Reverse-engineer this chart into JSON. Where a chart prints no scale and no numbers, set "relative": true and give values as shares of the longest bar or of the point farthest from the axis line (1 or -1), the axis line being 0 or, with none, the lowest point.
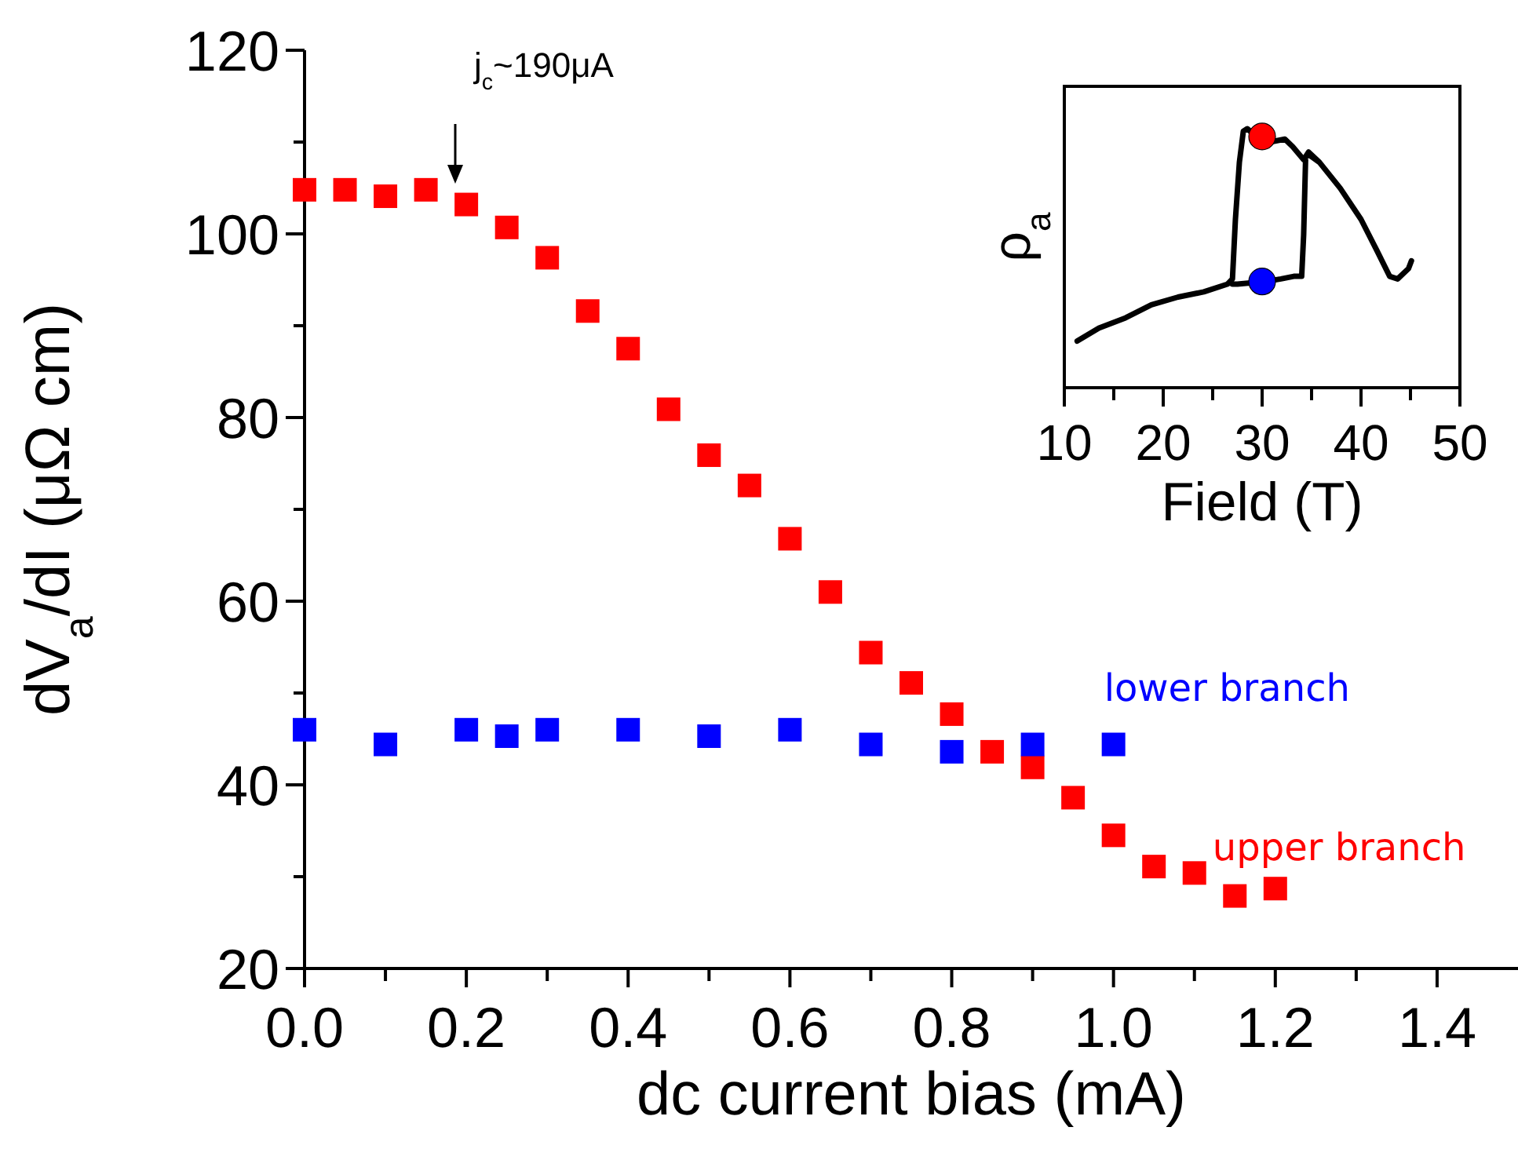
{
  "chart_data": [
    {
      "type": "scatter",
      "xlabel": "dc current bias (mA)",
      "ylabel": "dV$_{a}$/dI (μΩ cm)",
      "xlim": [
        0,
        1.5
      ],
      "ylim": [
        20,
        120
      ],
      "xticks": [
        {
          "value": 0,
          "label": "0.0"
        },
        {
          "value": 0.1,
          "label": null
        },
        {
          "value": 0.2,
          "label": "0.2"
        },
        {
          "value": 0.3,
          "label": null
        },
        {
          "value": 0.4,
          "label": "0.4"
        },
        {
          "value": 0.5,
          "label": null
        },
        {
          "value": 0.6,
          "label": "0.6"
        },
        {
          "value": 0.7,
          "label": null
        },
        {
          "value": 0.8,
          "label": "0.8"
        },
        {
          "value": 0.9,
          "label": null
        },
        {
          "value": 1.0,
          "label": "1.0"
        },
        {
          "value": 1.1,
          "label": null
        },
        {
          "value": 1.2,
          "label": "1.2"
        },
        {
          "value": 1.3,
          "label": null
        },
        {
          "value": 1.4,
          "label": "1.4"
        }
      ],
      "yticks": [
        20,
        {
          "value": 30,
          "label": null
        },
        40,
        {
          "value": 50,
          "label": null
        },
        60,
        {
          "value": 70,
          "label": null
        },
        80,
        {
          "value": 90,
          "label": null
        },
        100,
        {
          "value": 110,
          "label": null
        },
        120
      ],
      "marker": "square",
      "grid": false,
      "legend": false,
      "series": [
        {
          "name": "upper branch",
          "color": "#ff0000",
          "x": [
            0,
            0.05,
            0.1,
            0.15,
            0.2,
            0.25,
            0.3,
            0.35,
            0.4,
            0.45,
            0.5,
            0.55,
            0.6,
            0.65,
            0.7,
            0.75,
            0.8,
            0.85,
            0.9,
            0.95,
            1.0,
            1.05,
            1.1,
            1.15,
            1.2
          ],
          "values": [
            104.8,
            104.8,
            104.1,
            104.8,
            103.2,
            100.7,
            97.4,
            91.6,
            87.5,
            80.9,
            75.9,
            72.6,
            66.8,
            61,
            54.4,
            51.1,
            47.7,
            43.6,
            41.9,
            38.6,
            34.5,
            31.1,
            30.4,
            27.9,
            28.7
          ]
        },
        {
          "name": "lower branch",
          "color": "#0000ff",
          "x": [
            0,
            0.1,
            0.2,
            0.25,
            0.3,
            0.4,
            0.5,
            0.6,
            0.7,
            0.8,
            0.9,
            1.0
          ],
          "values": [
            46,
            44.4,
            46,
            45.3,
            46,
            46,
            45.3,
            46,
            44.4,
            43.6,
            44.4,
            44.4
          ]
        }
      ],
      "annotations": [
        "j$_{c}$~190μA"
      ]
    },
    {
      "type": "line",
      "xlabel": "Field (T)",
      "ylabel": "ρ$_{a}$",
      "xlim": [
        10,
        50
      ],
      "relative": true,
      "tick_labels": "x",
      "xticks": [
        10,
        {
          "value": 15,
          "label": null
        },
        20,
        {
          "value": 25,
          "label": null
        },
        30,
        {
          "value": 35,
          "label": null
        },
        40,
        {
          "value": 45,
          "label": null
        },
        50
      ],
      "grid": false,
      "legend": false,
      "series": [
        {
          "color": "#000000",
          "line_style": "solid",
          "marker": "none",
          "x": [
            11.3,
            13.5,
            16.2,
            18.8,
            21.5,
            24.1,
            26.5,
            27.0,
            27.3,
            27.7,
            28.1,
            28.5,
            29.4,
            31,
            32.3,
            33.1,
            34.2,
            34.7,
            35.8,
            37.9,
            40,
            41.6,
            42.9,
            43.7,
            44.8,
            45.1,
            44.8,
            43.7,
            42.9,
            41.6,
            40,
            37.9,
            35.8,
            34.7,
            34.4,
            34.2,
            34.0,
            33.2,
            31.9,
            30.3,
            27.5,
            27.0
          ],
          "values": [
            0.18,
            0.23,
            0.27,
            0.32,
            0.35,
            0.37,
            0.4,
            0.42,
            0.65,
            0.87,
            0.99,
            1.0,
            0.97,
            0.95,
            0.96,
            0.93,
            0.88,
            0.91,
            0.87,
            0.77,
            0.65,
            0.53,
            0.43,
            0.42,
            0.46,
            0.49,
            0.46,
            0.42,
            0.43,
            0.53,
            0.65,
            0.77,
            0.87,
            0.9,
            0.89,
            0.59,
            0.43,
            0.43,
            0.42,
            0.41,
            0.4,
            0.4
          ]
        },
        {
          "type": "scatter",
          "color": "#ff0000",
          "marker": "circle",
          "x": [
            30
          ],
          "values": [
            0.97
          ]
        },
        {
          "type": "scatter",
          "color": "#0000ff",
          "marker": "circle",
          "x": [
            30
          ],
          "values": [
            0.41
          ]
        }
      ]
    }
  ]
}
